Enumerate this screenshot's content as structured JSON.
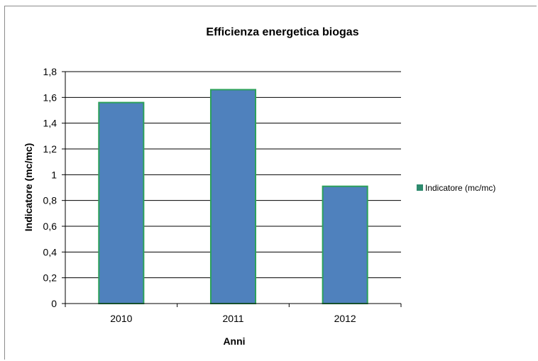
{
  "chart_data": {
    "type": "bar",
    "title": "Efficienza energetica biogas",
    "xlabel": "Anni",
    "ylabel": "Indicatore (mc/mc)",
    "categories": [
      "2010",
      "2011",
      "2012"
    ],
    "series": [
      {
        "name": "Indicatore (mc/mc)",
        "values": [
          1.56,
          1.66,
          0.91
        ]
      }
    ],
    "ylim": [
      0,
      1.8
    ],
    "yticks": [
      "0",
      "0,2",
      "0,4",
      "0,6",
      "0,8",
      "1",
      "1,2",
      "1,4",
      "1,6",
      "1,8"
    ],
    "grid": true,
    "legend_position": "right",
    "colors": {
      "bar_fill": "#4f81bd",
      "bar_stroke": "#2ca05a",
      "gridline": "#000000",
      "legend_marker": "#2e8b6e"
    }
  }
}
